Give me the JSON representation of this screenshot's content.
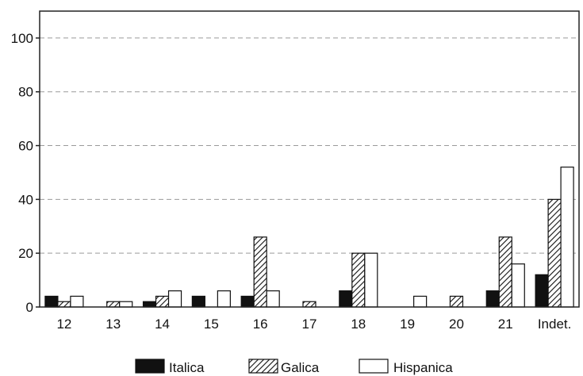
{
  "chart_data": {
    "type": "bar",
    "title": "",
    "xlabel": "",
    "ylabel": "",
    "ylim": [
      0,
      110
    ],
    "yticks": [
      0,
      20,
      40,
      60,
      80,
      100
    ],
    "grid": true,
    "legend_position": "bottom",
    "categories": [
      "12",
      "13",
      "14",
      "15",
      "16",
      "17",
      "18",
      "19",
      "20",
      "21",
      "Indet."
    ],
    "series": [
      {
        "name": "Italica",
        "pattern": "solid",
        "color": "#111111",
        "values": [
          4,
          0,
          2,
          4,
          4,
          0,
          6,
          0,
          0,
          6,
          12
        ]
      },
      {
        "name": "Galica",
        "pattern": "hatch",
        "color": "#111111",
        "values": [
          2,
          2,
          4,
          0,
          26,
          2,
          20,
          0,
          4,
          26,
          40
        ]
      },
      {
        "name": "Hispanica",
        "pattern": "empty",
        "color": "#ffffff",
        "values": [
          4,
          2,
          6,
          6,
          6,
          0,
          20,
          4,
          0,
          16,
          52
        ]
      }
    ]
  }
}
